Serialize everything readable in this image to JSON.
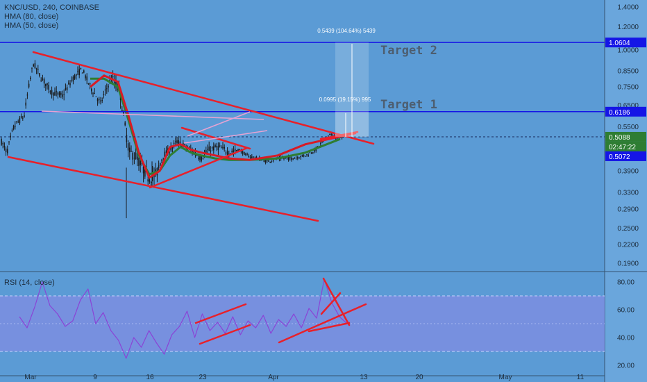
{
  "header": {
    "symbol_line": "KNC/USD, 240, COINBASE",
    "indicator_1": "HMA (80, close)",
    "indicator_2": "HMA (50, close)"
  },
  "rsi_label": "RSI (14, close)",
  "colors": {
    "background": "#5b9bd5",
    "candle": "#1a1a1a",
    "trend": "#e8202a",
    "hma80": "#2e7d32",
    "hma50": "#d81b25",
    "level": "#1515e6",
    "rsi": "#8a44d6",
    "rsi_band": "#7c8ee0"
  },
  "chart_data": [
    {
      "type": "line",
      "title": "KNC/USD, 240, COINBASE",
      "scale": "log",
      "ylim": [
        0.17,
        1.55
      ],
      "x_ticks": [
        "Mar",
        "9",
        "16",
        "23",
        "Apr",
        "13",
        "20",
        "May",
        "11"
      ],
      "y_ticks": [
        "1.4000",
        "1.2000",
        "1.0000",
        "0.8500",
        "0.7500",
        "0.6500",
        "0.5500",
        "0.4500",
        "0.3900",
        "0.3300",
        "0.2900",
        "0.2500",
        "0.2200",
        "0.1900"
      ],
      "series": [
        {
          "name": "HMA (80, close)",
          "values": [
            0.8,
            0.8,
            0.75,
            0.58,
            0.44,
            0.38,
            0.39,
            0.44,
            0.47,
            0.45,
            0.44,
            0.43,
            0.425,
            0.425,
            0.43,
            0.45,
            0.5
          ]
        },
        {
          "name": "HMA (50, close)",
          "values": [
            0.75,
            0.82,
            0.78,
            0.6,
            0.45,
            0.37,
            0.39,
            0.47,
            0.48,
            0.46,
            0.45,
            0.44,
            0.43,
            0.425,
            0.44,
            0.48,
            0.51
          ]
        }
      ],
      "horizontal_levels": [
        {
          "value": 1.0604,
          "label": "1.0604"
        },
        {
          "value": 0.6186,
          "label": "0.6186"
        },
        {
          "value": 0.5088,
          "label": "0.5088"
        }
      ],
      "price_badges": [
        "0.5088",
        "02:47:22",
        "0.5072"
      ],
      "annotations": [
        "Target 1",
        "Target 2",
        "0.0995 (19.15%) 995",
        "0.5439 (104.64%) 5439"
      ]
    },
    {
      "type": "line",
      "title": "RSI (14, close)",
      "ylim": [
        20,
        85
      ],
      "y_ticks": [
        "80.00",
        "60.00",
        "40.00",
        "20.00"
      ],
      "band": [
        30,
        70
      ],
      "series": [
        {
          "name": "RSI (14, close)",
          "values": [
            55,
            47,
            62,
            80,
            63,
            57,
            48,
            52,
            67,
            75,
            50,
            58,
            45,
            38,
            25,
            40,
            33,
            45,
            36,
            28,
            42,
            48,
            59,
            40,
            57,
            45,
            51,
            43,
            55,
            42,
            52,
            47,
            56,
            43,
            53,
            48,
            57,
            47,
            61,
            54,
            82,
            65,
            55,
            50
          ]
        }
      ]
    }
  ]
}
